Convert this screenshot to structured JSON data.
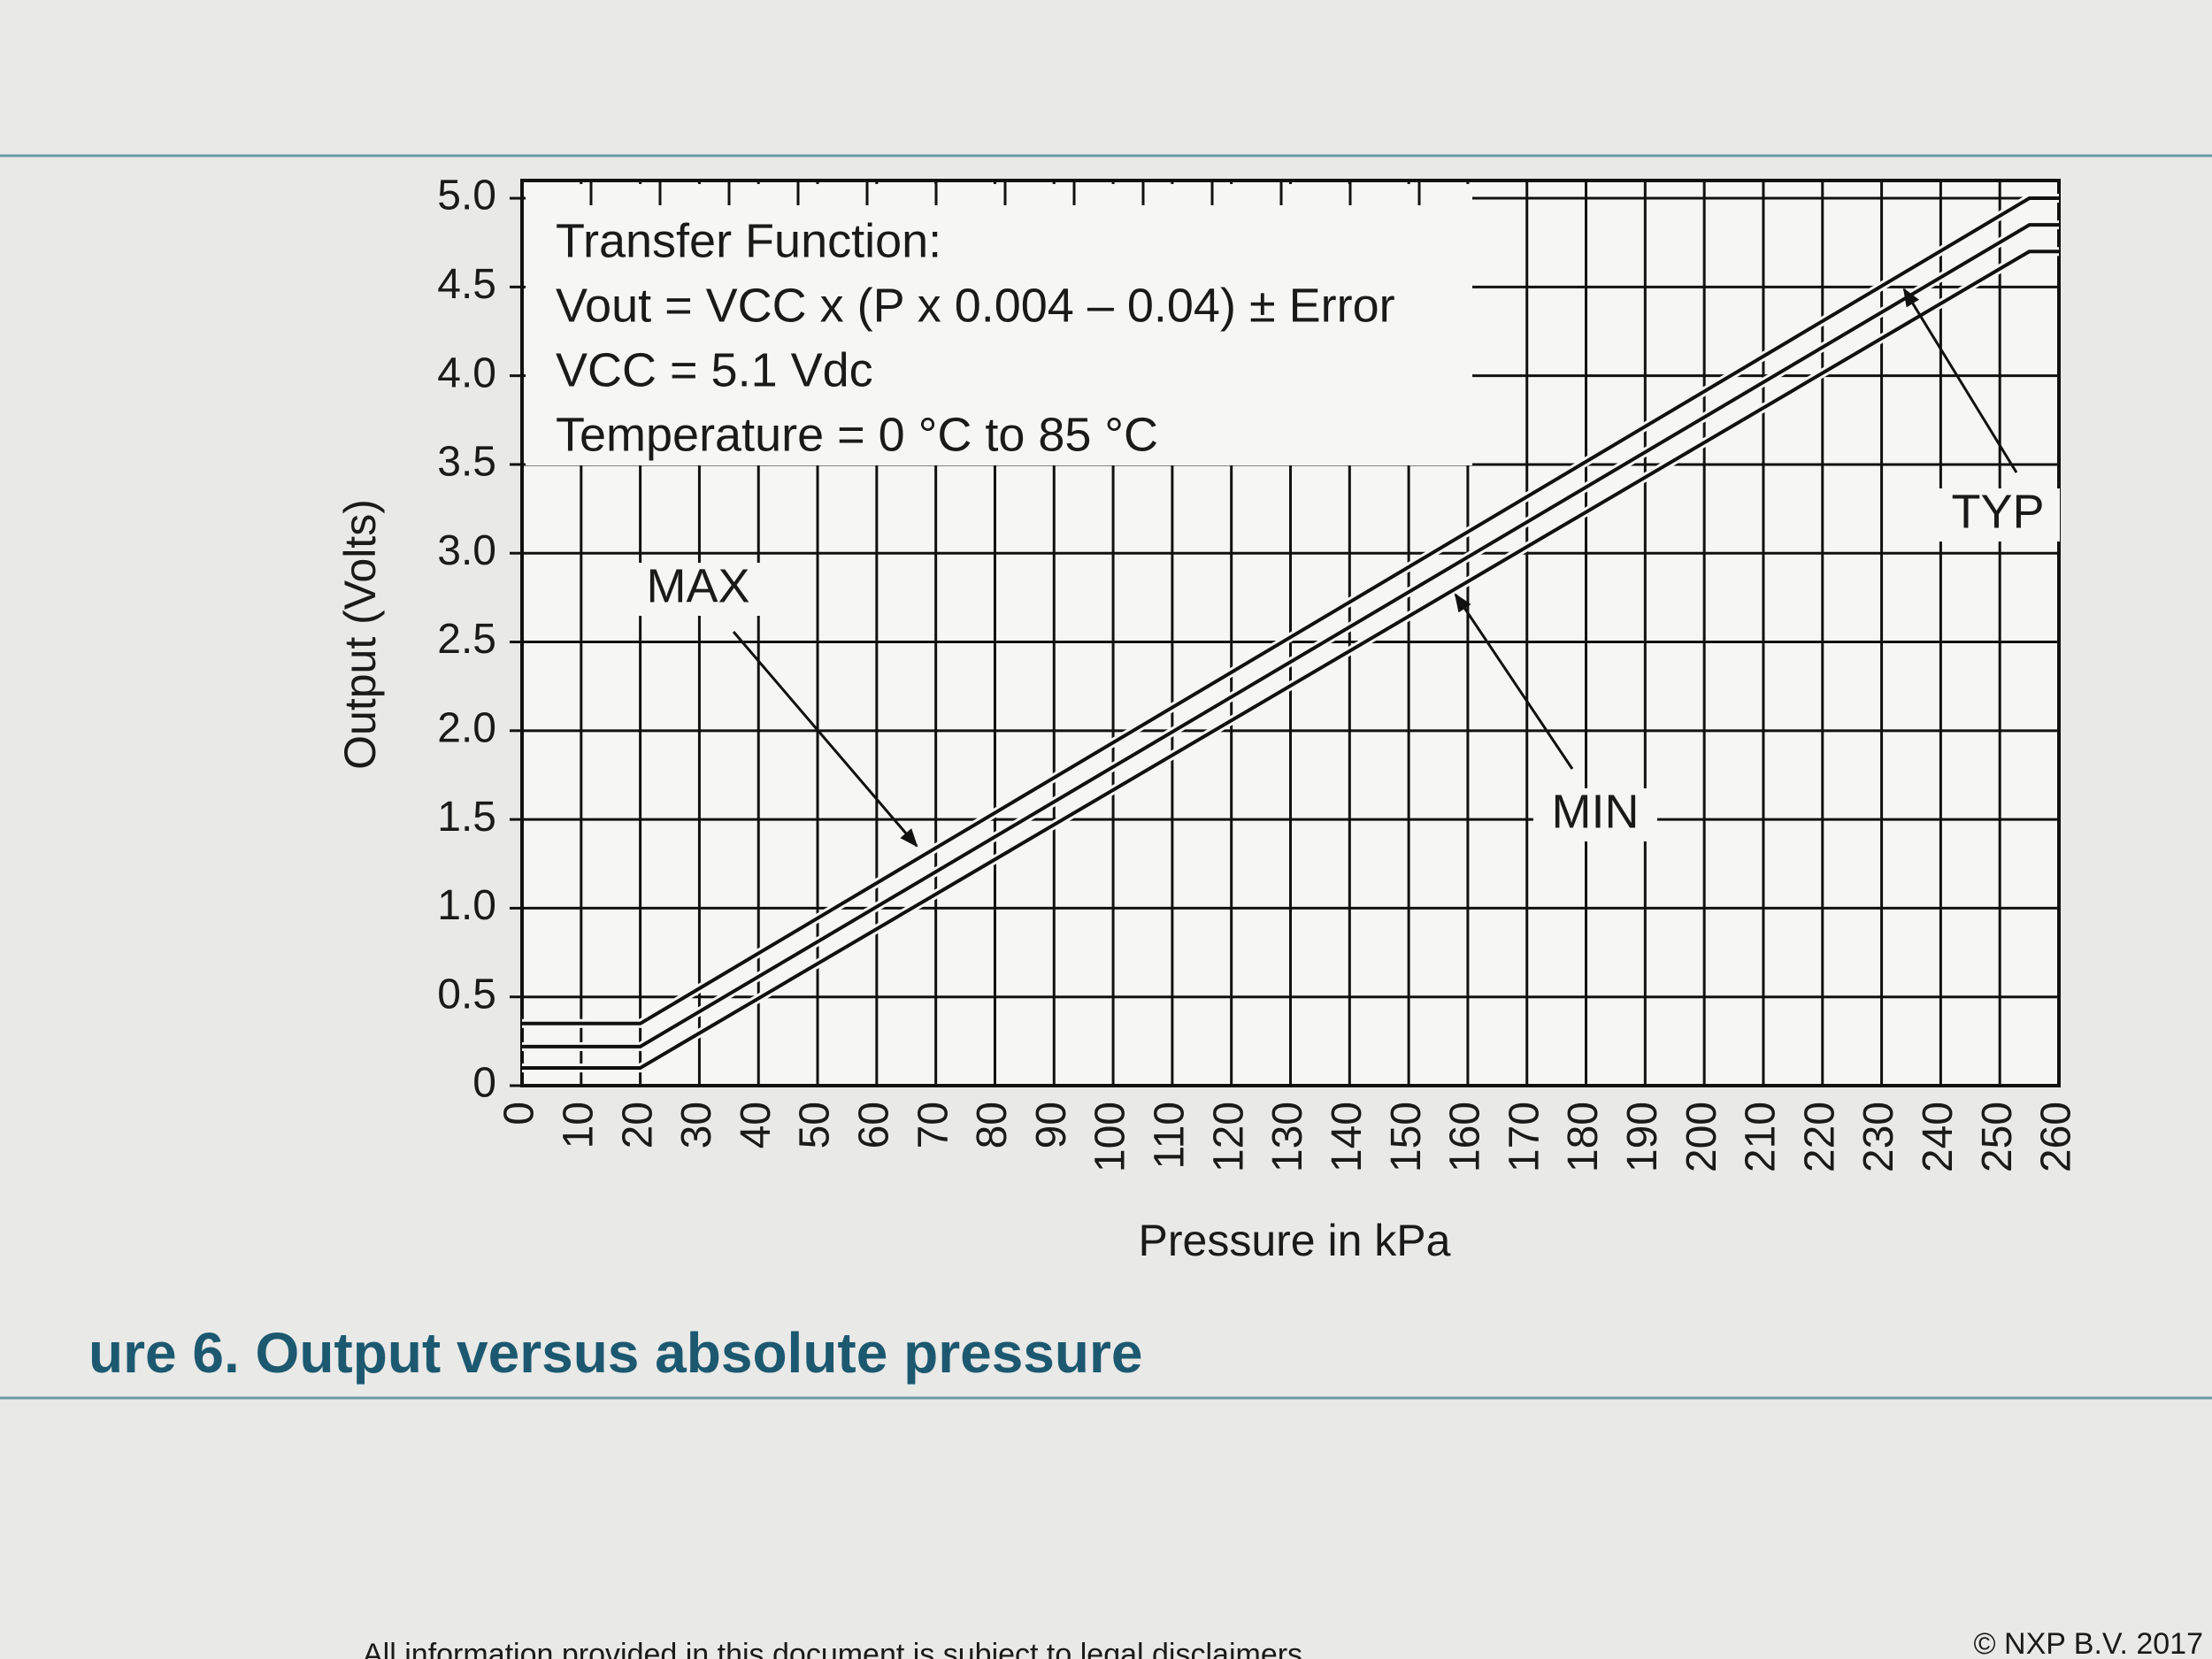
{
  "chart_data": {
    "type": "line",
    "title": "ure 6.  Output versus absolute pressure",
    "x_label": "Pressure in kPa",
    "y_label": "Output (Volts)",
    "annotations": [
      "Transfer Function:",
      "Vout = VCC x (P x 0.004 – 0.04) ± Error",
      "VCC = 5.1 Vdc",
      "Temperature = 0 °C to 85 °C"
    ],
    "footer": [
      "All information provided in this document is subject to legal disclaimers.",
      "© NXP B.V. 2017"
    ],
    "x": [
      0,
      20,
      255,
      260
    ],
    "series": [
      {
        "name": "MAX",
        "color": "#111111",
        "values": [
          0.35,
          0.35,
          5.0,
          5.0
        ]
      },
      {
        "name": "TYP",
        "color": "#111111",
        "values": [
          0.22,
          0.22,
          4.85,
          4.85
        ]
      },
      {
        "name": "MIN",
        "color": "#111111",
        "values": [
          0.1,
          0.1,
          4.7,
          4.7
        ]
      }
    ],
    "xlim": [
      0,
      260
    ],
    "xticks": [
      0,
      10,
      20,
      30,
      40,
      50,
      60,
      70,
      80,
      90,
      100,
      110,
      120,
      130,
      140,
      150,
      160,
      170,
      180,
      190,
      200,
      210,
      220,
      230,
      240,
      250,
      260
    ],
    "ylim": [
      0,
      5.1
    ],
    "yticks": [
      0,
      0.5,
      {
        "value": 1,
        "label": "1.0"
      },
      1.5,
      {
        "value": 2,
        "label": "2.0"
      },
      2.5,
      {
        "value": 3,
        "label": "3.0"
      },
      3.5,
      {
        "value": 4,
        "label": "4.0"
      },
      4.5,
      {
        "value": 5,
        "label": "5.0"
      }
    ],
    "grid": true
  }
}
